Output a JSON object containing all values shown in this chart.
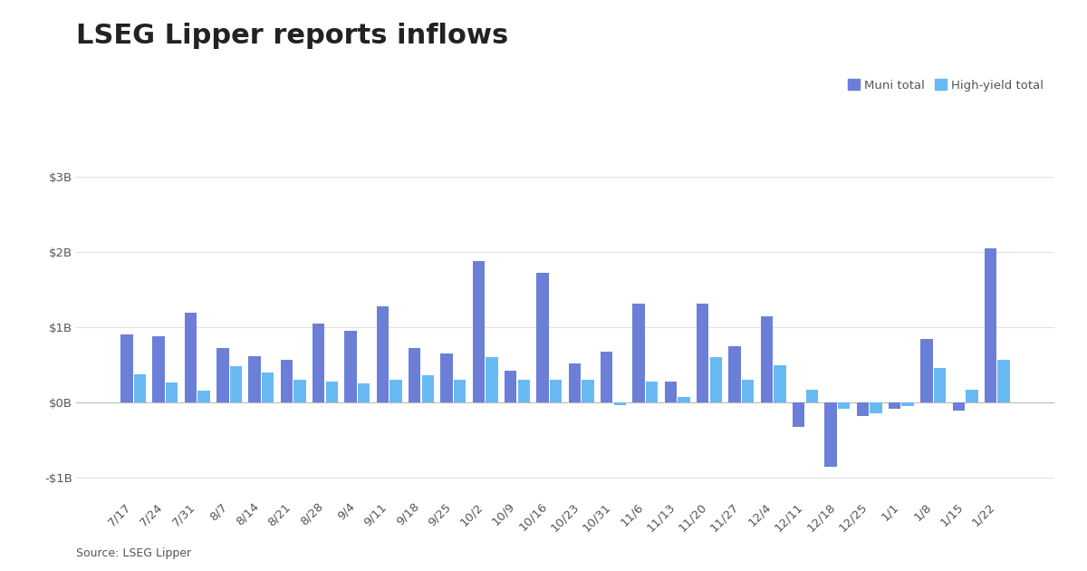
{
  "title": "LSEG Lipper reports inflows",
  "source": "Source: LSEG Lipper",
  "legend_labels": [
    "Muni total",
    "High-yield total"
  ],
  "muni_color": "#6B7FD9",
  "hy_color": "#68BAF2",
  "background_color": "#ffffff",
  "ylim": [
    -1.25,
    3.3
  ],
  "yticks": [
    -1,
    0,
    1,
    2,
    3
  ],
  "ytick_labels": [
    "-$1B",
    "$0B",
    "$1B",
    "$2B",
    "$3B"
  ],
  "categories": [
    "7/17",
    "7/24",
    "7/31",
    "8/7",
    "8/14",
    "8/21",
    "8/28",
    "9/4",
    "9/11",
    "9/18",
    "9/25",
    "10/2",
    "10/9",
    "10/16",
    "10/23",
    "10/31",
    "11/6",
    "11/13",
    "11/20",
    "11/27",
    "12/4",
    "12/11",
    "12/18",
    "12/25",
    "1/1",
    "1/8",
    "1/15",
    "1/22"
  ],
  "muni_values": [
    0.9,
    0.88,
    1.2,
    0.72,
    0.62,
    0.57,
    1.05,
    0.95,
    1.28,
    0.72,
    0.65,
    1.88,
    0.43,
    1.72,
    0.52,
    0.68,
    1.32,
    0.28,
    1.32,
    0.75,
    1.15,
    -0.32,
    -0.85,
    -0.18,
    -0.08,
    0.85,
    -0.1,
    2.05
  ],
  "hy_values": [
    0.38,
    0.27,
    0.16,
    0.48,
    0.4,
    0.3,
    0.28,
    0.26,
    0.3,
    0.36,
    0.3,
    0.6,
    0.3,
    0.3,
    0.3,
    -0.03,
    0.28,
    0.07,
    0.6,
    0.3,
    0.5,
    0.17,
    -0.08,
    -0.14,
    -0.05,
    0.46,
    0.17,
    0.57
  ],
  "grid_color": "#e0e0e0",
  "tick_label_color": "#555555",
  "title_fontsize": 22,
  "axis_fontsize": 9.5
}
